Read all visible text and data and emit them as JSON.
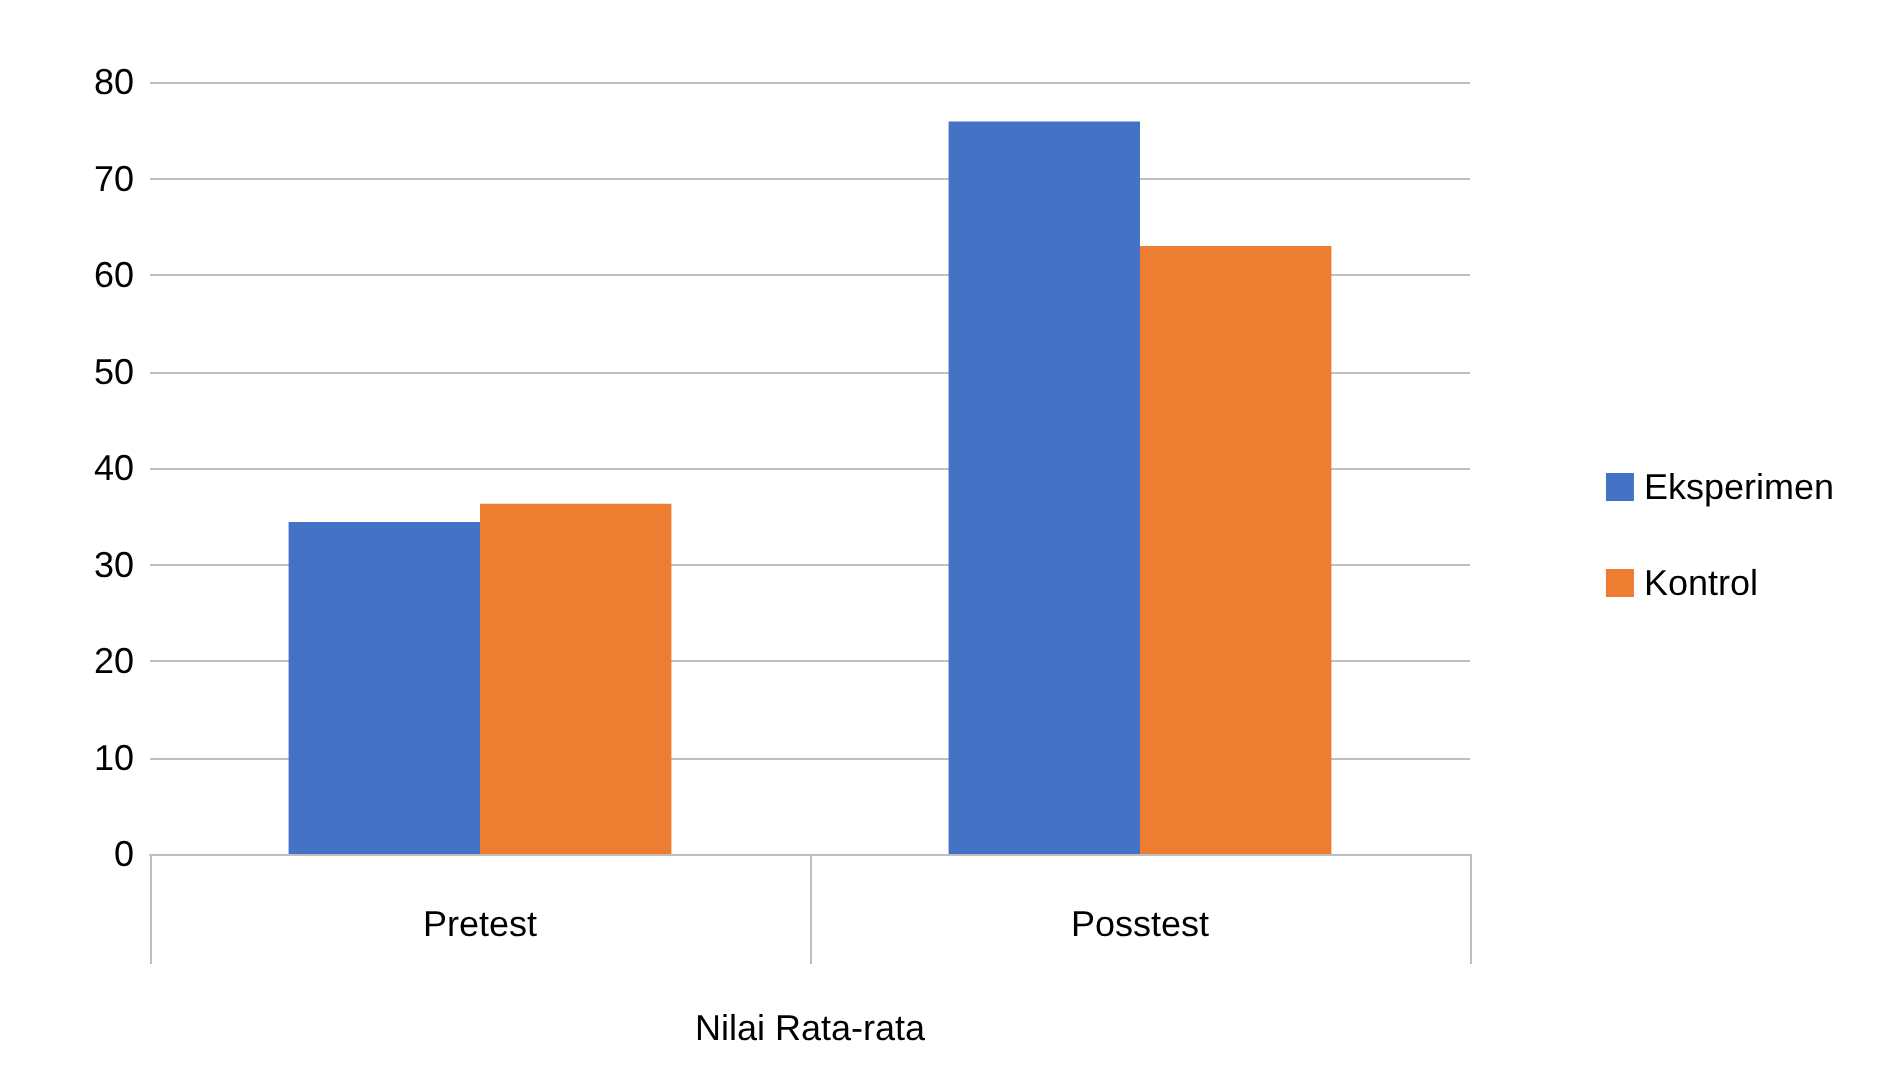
{
  "chart_data": {
    "type": "bar",
    "xlabel": "Nilai Rata-rata",
    "categories": [
      "Pretest",
      "Posstest"
    ],
    "series": [
      {
        "name": "Eksperimen",
        "color": "#4472c4",
        "values": [
          34.4,
          75.9
        ]
      },
      {
        "name": "Kontrol",
        "color": "#ed7d31",
        "values": [
          36.3,
          63.0
        ]
      }
    ],
    "ylim": [
      0,
      80
    ],
    "yticks": [
      0,
      10,
      20,
      30,
      40,
      50,
      60,
      70,
      80
    ],
    "grid": "y",
    "legend": "right"
  }
}
